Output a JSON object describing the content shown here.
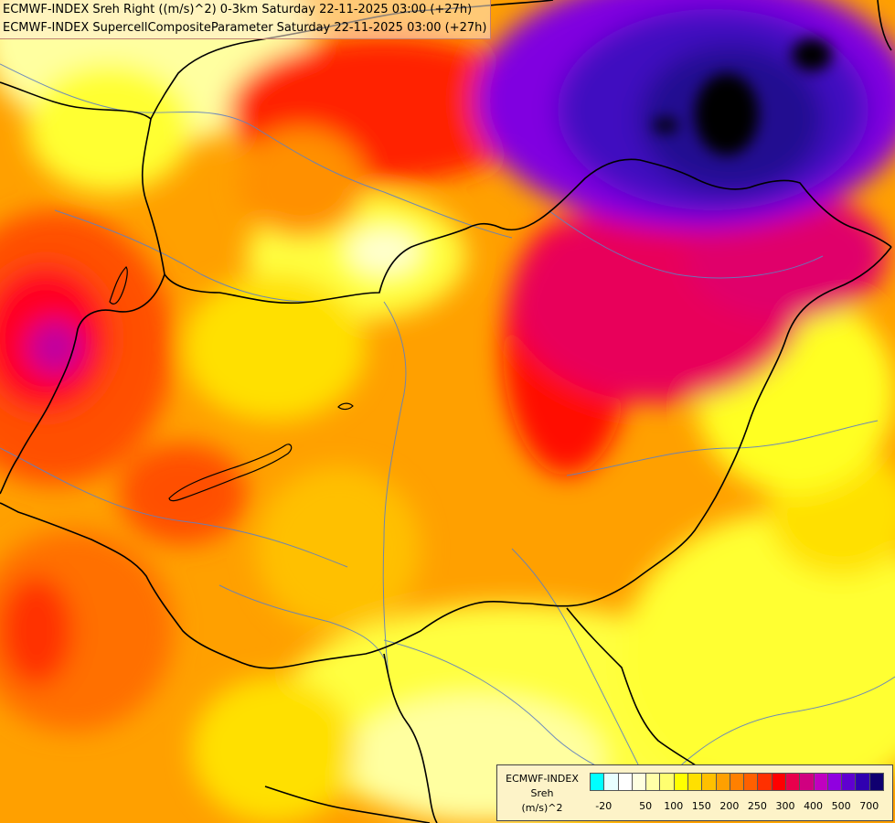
{
  "titles": {
    "line1": "ECMWF-INDEX Sreh Right ((m/s)^2) 0-3km Saturday 22-11-2025 03:00 (+27h)",
    "line2": "ECMWF-INDEX SupercellCompositeParameter Saturday 22-11-2025 03:00 (+27h)"
  },
  "legend": {
    "model": "ECMWF-INDEX",
    "field": "Sreh",
    "unit": "(m/s)^2",
    "colors": [
      "#00ffff",
      "#e8ffff",
      "#ffffff",
      "#ffffe0",
      "#ffffa8",
      "#ffff70",
      "#ffff00",
      "#ffe000",
      "#ffc000",
      "#ffa000",
      "#ff8000",
      "#ff6000",
      "#ff3000",
      "#ff0000",
      "#e8004c",
      "#d00080",
      "#c000c0",
      "#9000e0",
      "#6000d0",
      "#3000b0",
      "#100070"
    ],
    "ticks": [
      "-20",
      "50",
      "100",
      "150",
      "200",
      "250",
      "300",
      "400",
      "500",
      "700"
    ]
  },
  "colors": {
    "yellow_pale": "#ffffc0",
    "yellow": "#ffff00",
    "orange": "#ffa000",
    "red": "#ff1000",
    "magenta": "#d00080",
    "purple": "#7a10e0",
    "indigo": "#3a10b0",
    "black": "#000000",
    "border": "#000000",
    "river": "#6080c0"
  }
}
